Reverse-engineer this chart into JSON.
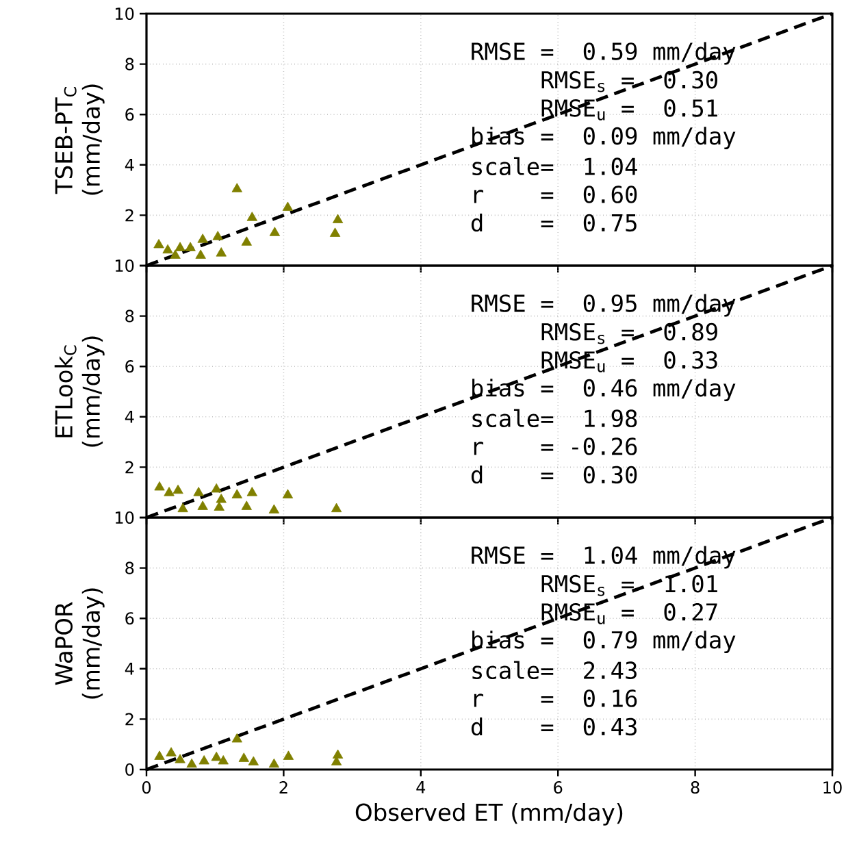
{
  "chart_data": [
    {
      "type": "scatter",
      "ylabel": "TSEB-PT$_{C}$ (mm/day)",
      "xlim": [
        0,
        10
      ],
      "ylim": [
        0,
        10
      ],
      "xticks": [
        0,
        2,
        4,
        6,
        8,
        10
      ],
      "yticks": [
        {
          "value": 0,
          "label": null
        },
        2,
        4,
        6,
        8,
        10
      ],
      "tick_labels": "y",
      "grid": true,
      "marker": "triangle",
      "series": [
        {
          "color": "#808000",
          "x": [
            0.18,
            0.31,
            0.42,
            0.49,
            0.64,
            0.79,
            0.82,
            1.04,
            1.09,
            1.32,
            1.46,
            1.54,
            1.87,
            2.06,
            2.75,
            2.79
          ],
          "values": [
            0.82,
            0.61,
            0.4,
            0.7,
            0.7,
            0.4,
            1.03,
            1.14,
            0.49,
            3.04,
            0.92,
            1.9,
            1.3,
            2.3,
            1.27,
            1.81
          ]
        },
        {
          "type": "line",
          "color": "#000000",
          "line_style": "dashed",
          "marker": "none",
          "x": [
            0,
            10
          ],
          "values": [
            0,
            10
          ]
        }
      ],
      "annotations": [
        "RMSE =  0.59 mm/day",
        "     RMSE$_{s}$ =  0.30",
        "     RMSE$_{u}$ =  0.51",
        "bias =  0.09 mm/day",
        "scale=  1.04",
        "r    =  0.60",
        "d    =  0.75"
      ]
    },
    {
      "type": "scatter",
      "ylabel": "ETLook$_{C}$ (mm/day)",
      "xlim": [
        0,
        10
      ],
      "ylim": [
        0,
        10
      ],
      "xticks": [
        0,
        2,
        4,
        6,
        8,
        10
      ],
      "yticks": [
        {
          "value": 0,
          "label": null
        },
        2,
        4,
        6,
        8,
        10
      ],
      "tick_labels": "y",
      "grid": true,
      "marker": "triangle",
      "series": [
        {
          "color": "#808000",
          "x": [
            0.19,
            0.33,
            0.46,
            0.53,
            0.76,
            0.82,
            1.02,
            1.06,
            1.09,
            1.32,
            1.46,
            1.54,
            1.86,
            2.06,
            2.77
          ],
          "values": [
            1.2,
            0.98,
            1.07,
            0.34,
            0.98,
            0.43,
            1.12,
            0.4,
            0.71,
            0.89,
            0.43,
            0.98,
            0.29,
            0.89,
            0.34
          ]
        },
        {
          "type": "line",
          "color": "#000000",
          "line_style": "dashed",
          "marker": "none",
          "x": [
            0,
            10
          ],
          "values": [
            0,
            10
          ]
        }
      ],
      "annotations": [
        "RMSE =  0.95 mm/day",
        "     RMSE$_{s}$ =  0.89",
        "     RMSE$_{u}$ =  0.33",
        "bias =  0.46 mm/day",
        "scale=  1.98",
        "r    = -0.26",
        "d    =  0.30"
      ]
    },
    {
      "type": "scatter",
      "ylabel": "WaPOR (mm/day)",
      "xlabel": "Observed ET (mm/day)",
      "xlim": [
        0,
        10
      ],
      "ylim": [
        0,
        10
      ],
      "xticks": [
        0,
        2,
        4,
        6,
        8,
        10
      ],
      "yticks": [
        0,
        2,
        4,
        6,
        8,
        10
      ],
      "grid": true,
      "marker": "triangle",
      "series": [
        {
          "color": "#808000",
          "x": [
            0.19,
            0.36,
            0.49,
            0.66,
            0.84,
            1.02,
            1.12,
            1.32,
            1.42,
            1.56,
            1.86,
            2.07,
            2.77,
            2.79
          ],
          "values": [
            0.51,
            0.65,
            0.38,
            0.2,
            0.33,
            0.47,
            0.33,
            1.2,
            0.43,
            0.29,
            0.2,
            0.51,
            0.29,
            0.56
          ]
        },
        {
          "type": "line",
          "color": "#000000",
          "line_style": "dashed",
          "marker": "none",
          "x": [
            0,
            10
          ],
          "values": [
            0,
            10
          ]
        }
      ],
      "annotations": [
        "RMSE =  1.04 mm/day",
        "     RMSE$_{s}$ =  1.01",
        "     RMSE$_{u}$ =  0.27",
        "bias =  0.79 mm/day",
        "scale=  2.43",
        "r    =  0.16",
        "d    =  0.43"
      ]
    }
  ]
}
